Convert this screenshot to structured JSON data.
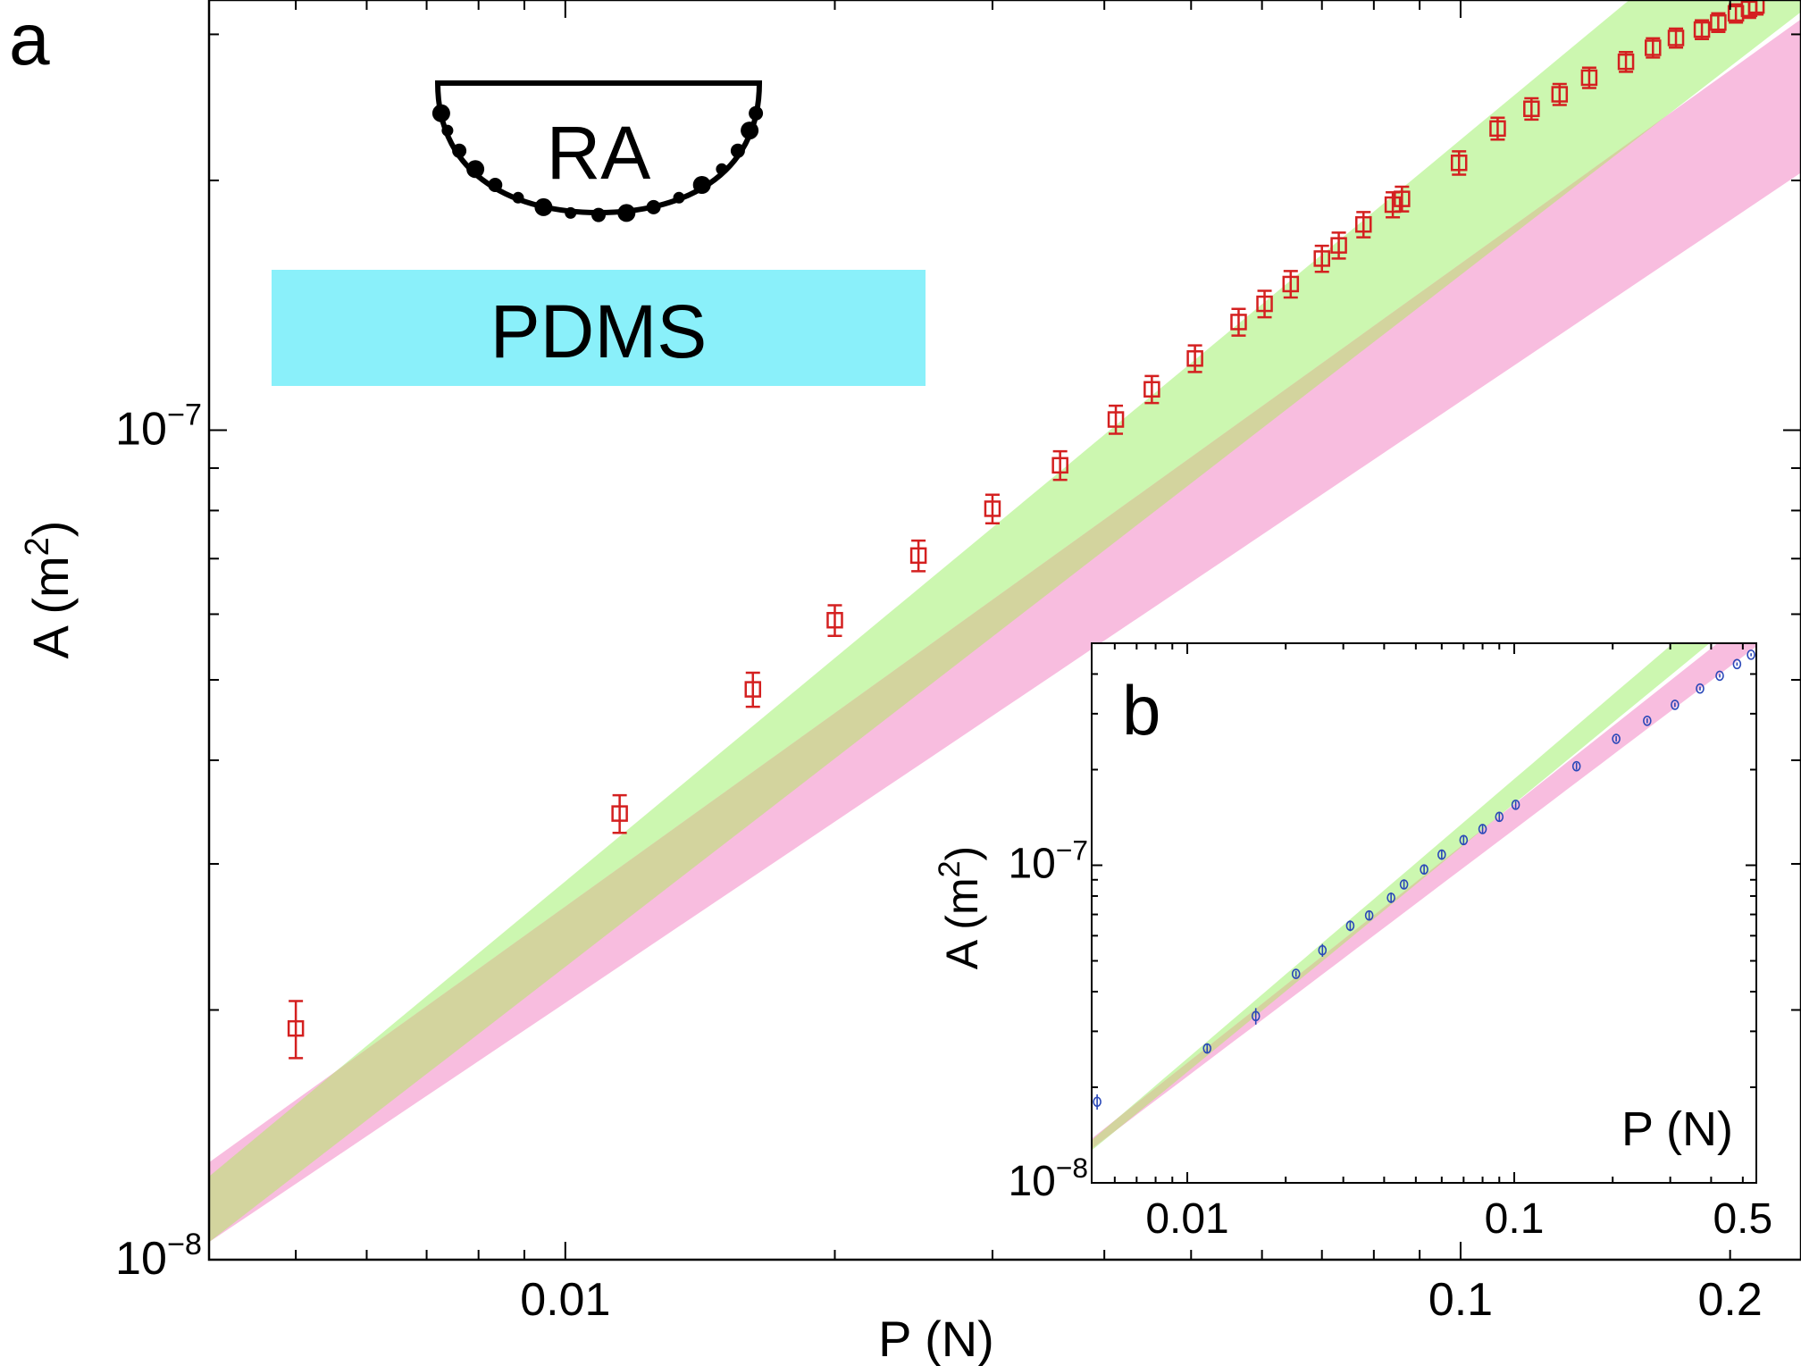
{
  "figure": {
    "colors": {
      "band_green": "#ccf7b0",
      "band_pink": "#f7b2d9",
      "band_overlap": "#d3d49e",
      "marker_main": "#d42020",
      "marker_inset": "#2a48b8",
      "pdms": "#8af0fa"
    },
    "schematic": {
      "tip_label": "RA",
      "substrate_label": "PDMS",
      "tip_icon": "hemisphere-with-asperities-icon"
    }
  },
  "chart_data": [
    {
      "panel": "a",
      "type": "scatter",
      "xlabel": "P (N)",
      "ylabel": "A (m",
      "ylabel_sup": "2",
      "ylabel_close": ")",
      "xscale": "log",
      "yscale": "log",
      "xlim": [
        0.004,
        0.24
      ],
      "ylim": [
        1e-08,
        3.3e-07
      ],
      "x_ticks": [
        {
          "value": 0.01,
          "label": "0.01"
        },
        {
          "value": 0.1,
          "label": "0.1"
        },
        {
          "value": 0.2,
          "label": "0.2"
        }
      ],
      "y_ticks": [
        {
          "value": 1e-08,
          "base": "10",
          "exp": "−8"
        },
        {
          "value": 1e-07,
          "base": "10",
          "exp": "−7"
        }
      ],
      "series": [
        {
          "marker": "open-square",
          "points": [
            {
              "x": 0.005,
              "y": 1.9e-08,
              "err": 1.5e-09
            },
            {
              "x": 0.0115,
              "y": 3.45e-08,
              "err": 1.8e-09
            },
            {
              "x": 0.0162,
              "y": 4.87e-08,
              "err": 2.3e-09
            },
            {
              "x": 0.02,
              "y": 5.9e-08,
              "err": 2.5e-09
            },
            {
              "x": 0.0248,
              "y": 7.06e-08,
              "err": 3e-09
            },
            {
              "x": 0.03,
              "y": 8.04e-08,
              "err": 3.2e-09
            },
            {
              "x": 0.0357,
              "y": 9.07e-08,
              "err": 3.6e-09
            },
            {
              "x": 0.0412,
              "y": 1.03e-07,
              "err": 4e-09
            },
            {
              "x": 0.0452,
              "y": 1.12e-07,
              "err": 4.2e-09
            },
            {
              "x": 0.0505,
              "y": 1.22e-07,
              "err": 4.5e-09
            },
            {
              "x": 0.0565,
              "y": 1.35e-07,
              "err": 5e-09
            },
            {
              "x": 0.0604,
              "y": 1.42e-07,
              "err": 5.2e-09
            },
            {
              "x": 0.0646,
              "y": 1.5e-07,
              "err": 5.5e-09
            },
            {
              "x": 0.07,
              "y": 1.61e-07,
              "err": 5.8e-09
            },
            {
              "x": 0.0731,
              "y": 1.67e-07,
              "err": 6e-09
            },
            {
              "x": 0.0779,
              "y": 1.77e-07,
              "err": 6.2e-09
            },
            {
              "x": 0.084,
              "y": 1.87e-07,
              "err": 6.5e-09
            },
            {
              "x": 0.086,
              "y": 1.9e-07,
              "err": 6.5e-09
            },
            {
              "x": 0.0996,
              "y": 2.1e-07,
              "err": 6.8e-09
            },
            {
              "x": 0.11,
              "y": 2.31e-07,
              "err": 7e-09
            },
            {
              "x": 0.12,
              "y": 2.44e-07,
              "err": 7.2e-09
            },
            {
              "x": 0.129,
              "y": 2.54e-07,
              "err": 7.4e-09
            },
            {
              "x": 0.1392,
              "y": 2.66e-07,
              "err": 7.5e-09
            },
            {
              "x": 0.153,
              "y": 2.78e-07,
              "err": 7.6e-09
            },
            {
              "x": 0.164,
              "y": 2.89e-07,
              "err": 7.7e-09
            },
            {
              "x": 0.174,
              "y": 2.97e-07,
              "err": 7.8e-09
            },
            {
              "x": 0.186,
              "y": 3.04e-07,
              "err": 7.9e-09
            },
            {
              "x": 0.194,
              "y": 3.1e-07,
              "err": 8e-09
            },
            {
              "x": 0.203,
              "y": 3.18e-07,
              "err": 8e-09
            },
            {
              "x": 0.21,
              "y": 3.22e-07,
              "err": 8e-09
            },
            {
              "x": 0.214,
              "y": 3.25e-07,
              "err": 8e-09
            }
          ]
        }
      ],
      "bands": [
        {
          "color": "green",
          "x_range": [
            0.004,
            0.24
          ],
          "lower": {
            "A0": 1.05e-08,
            "b": 0.834
          },
          "upper": {
            "A0": 1.26e-08,
            "b": 0.894
          }
        },
        {
          "color": "pink",
          "x_range": [
            0.004,
            0.24
          ],
          "lower": {
            "A0": 1.05e-08,
            "b": 0.725
          },
          "upper": {
            "A0": 1.31e-08,
            "b": 0.775
          }
        }
      ]
    },
    {
      "panel": "b",
      "type": "scatter",
      "xlabel": "P (N)",
      "ylabel": "A (m",
      "ylabel_sup": "2",
      "ylabel_close": ")",
      "xscale": "log",
      "yscale": "log",
      "xlim": [
        0.0051,
        0.55
      ],
      "ylim": [
        1e-08,
        5e-07
      ],
      "x_ticks": [
        {
          "value": 0.01,
          "label": "0.01"
        },
        {
          "value": 0.1,
          "label": "0.1"
        },
        {
          "value": 0.5,
          "label": "0.5"
        }
      ],
      "y_ticks": [
        {
          "value": 1e-08,
          "base": "10",
          "exp": "−8"
        },
        {
          "value": 1e-07,
          "base": "10",
          "exp": "−7"
        }
      ],
      "series": [
        {
          "marker": "open-circle",
          "points": [
            {
              "x": 0.0053,
              "y": 1.8e-08,
              "err": 1e-09
            },
            {
              "x": 0.0115,
              "y": 2.65e-08,
              "err": 1e-09
            },
            {
              "x": 0.0162,
              "y": 3.35e-08,
              "err": 2e-09
            },
            {
              "x": 0.0215,
              "y": 4.55e-08,
              "err": 1e-09
            },
            {
              "x": 0.0259,
              "y": 5.4e-08,
              "err": 2.5e-09
            },
            {
              "x": 0.0315,
              "y": 6.45e-08,
              "err": 2.5e-09
            },
            {
              "x": 0.036,
              "y": 6.95e-08,
              "err": 2.5e-09
            },
            {
              "x": 0.042,
              "y": 7.9e-08,
              "err": 3e-09
            },
            {
              "x": 0.046,
              "y": 8.7e-08,
              "err": 3e-09
            },
            {
              "x": 0.053,
              "y": 9.7e-08,
              "err": 3e-09
            },
            {
              "x": 0.06,
              "y": 1.08e-07,
              "err": 4e-09
            },
            {
              "x": 0.07,
              "y": 1.2e-07,
              "err": 4e-09
            },
            {
              "x": 0.08,
              "y": 1.3e-07,
              "err": 4e-09
            },
            {
              "x": 0.09,
              "y": 1.42e-07,
              "err": 4e-09
            },
            {
              "x": 0.101,
              "y": 1.55e-07,
              "err": 4e-09
            },
            {
              "x": 0.155,
              "y": 2.05e-07,
              "err": 5e-09
            },
            {
              "x": 0.205,
              "y": 2.5e-07,
              "err": 5e-09
            },
            {
              "x": 0.255,
              "y": 2.85e-07,
              "err": 5e-09
            },
            {
              "x": 0.31,
              "y": 3.2e-07,
              "err": 5e-09
            },
            {
              "x": 0.37,
              "y": 3.6e-07,
              "err": 5e-09
            },
            {
              "x": 0.425,
              "y": 3.95e-07,
              "err": 5e-09
            },
            {
              "x": 0.48,
              "y": 4.3e-07,
              "err": 5e-09
            },
            {
              "x": 0.53,
              "y": 4.6e-07,
              "err": 5e-09
            }
          ]
        }
      ],
      "bands": [
        {
          "color": "green",
          "x_range": [
            0.0051,
            0.55
          ],
          "lower": {
            "A0": 1.03e-08,
            "b": 0.845
          },
          "upper": {
            "A0": 1.1e-08,
            "b": 0.88
          }
        },
        {
          "color": "pink",
          "x_range": [
            0.0051,
            0.55
          ],
          "lower": {
            "A0": 1.06e-08,
            "b": 0.778
          },
          "upper": {
            "A0": 1.13e-08,
            "b": 0.815
          }
        }
      ]
    }
  ]
}
